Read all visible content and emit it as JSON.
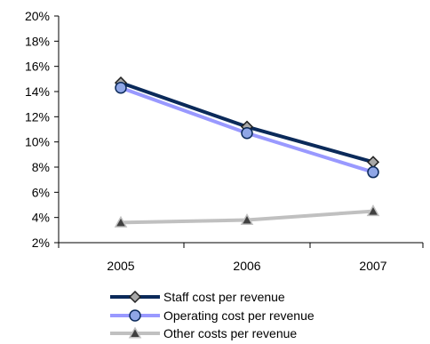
{
  "chart_data": {
    "type": "line",
    "categories": [
      "2005",
      "2006",
      "2007"
    ],
    "ylim": [
      0.02,
      0.2
    ],
    "y_ticks": [
      0.02,
      0.04,
      0.06,
      0.08,
      0.1,
      0.12,
      0.14,
      0.16,
      0.18,
      0.2
    ],
    "y_tick_labels": [
      "2%",
      "4%",
      "6%",
      "8%",
      "10%",
      "12%",
      "14%",
      "16%",
      "18%",
      "20%"
    ],
    "grid": false,
    "legend_position": "bottom",
    "series": [
      {
        "name": "Staff cost per revenue",
        "values": [
          0.147,
          0.112,
          0.084
        ],
        "color": "#0b2a5a",
        "marker": "diamond",
        "marker_fill": "#a8a8a8"
      },
      {
        "name": "Operating cost per revenue",
        "values": [
          0.143,
          0.107,
          0.076
        ],
        "color": "#9999ff",
        "marker": "circle",
        "marker_fill": "#8fa6e6"
      },
      {
        "name": "Other costs per revenue",
        "values": [
          0.036,
          0.038,
          0.045
        ],
        "color": "#c0c0c0",
        "marker": "triangle",
        "marker_fill": "#404040"
      }
    ]
  }
}
